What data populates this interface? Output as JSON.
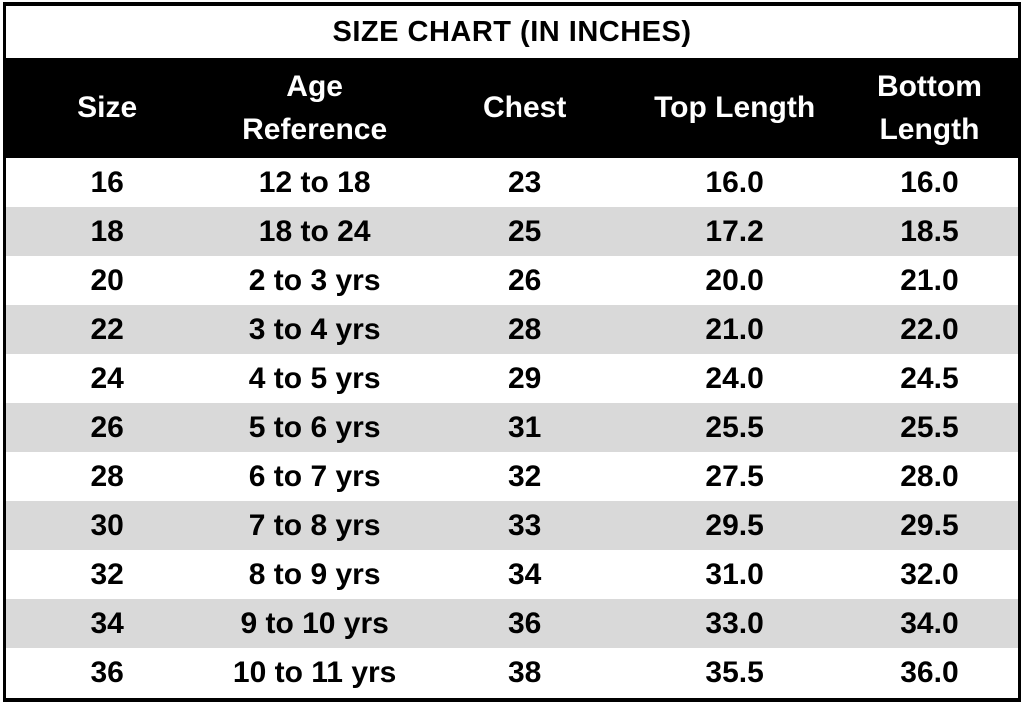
{
  "title": "SIZE CHART (IN INCHES)",
  "colors": {
    "header_bg": "#000000",
    "header_text": "#ffffff",
    "row_bg": "#ffffff",
    "row_alt_bg": "#d9d9d9",
    "border": "#000000",
    "body_text": "#000000"
  },
  "chart_data": {
    "type": "table",
    "title": "SIZE CHART (IN INCHES)",
    "units": "inches",
    "columns": [
      "Size",
      "Age Reference",
      "Chest",
      "Top Length",
      "Bottom Length"
    ],
    "rows": [
      [
        "16",
        "12 to 18",
        "23",
        "16.0",
        "16.0"
      ],
      [
        "18",
        "18 to 24",
        "25",
        "17.2",
        "18.5"
      ],
      [
        "20",
        "2 to 3 yrs",
        "26",
        "20.0",
        "21.0"
      ],
      [
        "22",
        "3 to 4 yrs",
        "28",
        "21.0",
        "22.0"
      ],
      [
        "24",
        "4 to 5 yrs",
        "29",
        "24.0",
        "24.5"
      ],
      [
        "26",
        "5 to 6 yrs",
        "31",
        "25.5",
        "25.5"
      ],
      [
        "28",
        "6 to 7 yrs",
        "32",
        "27.5",
        "28.0"
      ],
      [
        "30",
        "7 to 8 yrs",
        "33",
        "29.5",
        "29.5"
      ],
      [
        "32",
        "8 to 9 yrs",
        "34",
        "31.0",
        "32.0"
      ],
      [
        "34",
        "9 to 10 yrs",
        "36",
        "33.0",
        "34.0"
      ],
      [
        "36",
        "10 to 11 yrs",
        "38",
        "35.5",
        "36.0"
      ]
    ],
    "layout_hints": {
      "header_style": "black band, white bold text",
      "row_striping": "alternating white and light gray starting white",
      "alignment": "all cells centered",
      "outer_border": "black frame around entire table"
    }
  }
}
